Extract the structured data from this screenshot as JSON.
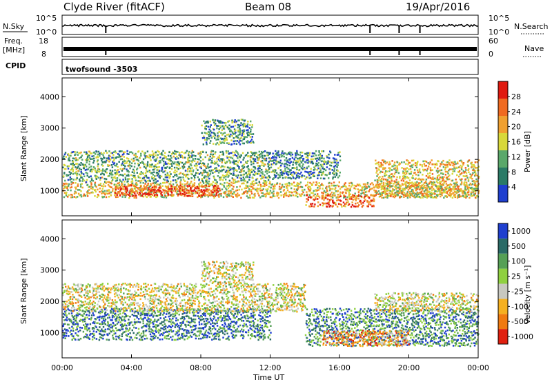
{
  "header": {
    "station": "Clyde River (fitACF)",
    "beam": "Beam 08",
    "date": "19/Apr/2016"
  },
  "top_panels": {
    "nsky_label": "N.Sky",
    "nsearch_label": "N.Search",
    "freq_label_1": "Freq.",
    "freq_label_2": "[MHz]",
    "nave_label": "Nave",
    "cpid_label": "CPID",
    "nsky_ticks": [
      "10^5",
      "10^0"
    ],
    "nsearch_ticks": [
      "10^5",
      "10^0"
    ],
    "freq_ticks": [
      "18",
      "8"
    ],
    "nave_ticks": [
      "60",
      "0"
    ],
    "cpid_text": "twofsound  -3503"
  },
  "chart_data": [
    {
      "type": "heatmap",
      "quantity": "Power",
      "ylabel": "Slant Range [km]",
      "xlabel": "",
      "colorbar_label": "Power [dB]",
      "colorbar_ticks": [
        "4",
        "8",
        "12",
        "16",
        "20",
        "24",
        "28"
      ],
      "colorbar_colors": [
        "#1f3fcf",
        "#2a7a66",
        "#5aa86a",
        "#d8d83a",
        "#f0a030",
        "#f06a20",
        "#e01a10"
      ],
      "yticks": [
        "1000",
        "2000",
        "3000",
        "4000"
      ],
      "yrange": [
        200,
        4600
      ],
      "xrange": [
        "00:00",
        "24:00"
      ],
      "bands": [
        {
          "t0": 0.0,
          "t1": 24.0,
          "r0": 800,
          "r1": 1300,
          "level": 0.55
        },
        {
          "t0": 0.0,
          "t1": 12.0,
          "r0": 1300,
          "r1": 2300,
          "level": 0.35
        },
        {
          "t0": 3.0,
          "t1": 9.0,
          "r0": 850,
          "r1": 1200,
          "level": 0.85
        },
        {
          "t0": 14.0,
          "t1": 18.0,
          "r0": 500,
          "r1": 900,
          "level": 0.8
        },
        {
          "t0": 18.0,
          "t1": 24.0,
          "r0": 800,
          "r1": 2000,
          "level": 0.55
        },
        {
          "t0": 8.0,
          "t1": 11.0,
          "r0": 2500,
          "r1": 3300,
          "level": 0.3
        },
        {
          "t0": 12.0,
          "t1": 16.0,
          "r0": 1400,
          "r1": 2300,
          "level": 0.25
        }
      ]
    },
    {
      "type": "heatmap",
      "quantity": "Velocity",
      "ylabel": "Slant Range [km]",
      "xlabel": "Time UT",
      "colorbar_label": "Velocity [m s⁻¹]",
      "colorbar_ticks": [
        "1000",
        "500",
        "100",
        "25",
        "-25",
        "-100",
        "-500",
        "-1000"
      ],
      "colorbar_colors": [
        "#1f3fcf",
        "#2a6a66",
        "#56a056",
        "#8fd040",
        "#c8c8c0",
        "#f5b020",
        "#f07a10",
        "#e02010"
      ],
      "yticks": [
        "1000",
        "2000",
        "3000",
        "4000"
      ],
      "yrange": [
        200,
        4600
      ],
      "xticks": [
        "00:00",
        "04:00",
        "08:00",
        "12:00",
        "16:00",
        "20:00",
        "00:00"
      ],
      "xrange": [
        "00:00",
        "24:00"
      ],
      "bands": [
        {
          "t0": 0.0,
          "t1": 12.0,
          "r0": 800,
          "r1": 1800,
          "level": 0.8
        },
        {
          "t0": 0.0,
          "t1": 14.0,
          "r0": 1700,
          "r1": 2600,
          "level": 0.45
        },
        {
          "t0": 14.0,
          "t1": 24.0,
          "r0": 600,
          "r1": 1800,
          "level": 0.75
        },
        {
          "t0": 15.0,
          "t1": 20.0,
          "r0": 600,
          "r1": 1100,
          "level": 0.25
        },
        {
          "t0": 18.0,
          "t1": 24.0,
          "r0": 1700,
          "r1": 2300,
          "level": 0.45
        },
        {
          "t0": 8.0,
          "t1": 11.0,
          "r0": 2600,
          "r1": 3300,
          "level": 0.45
        }
      ]
    }
  ]
}
